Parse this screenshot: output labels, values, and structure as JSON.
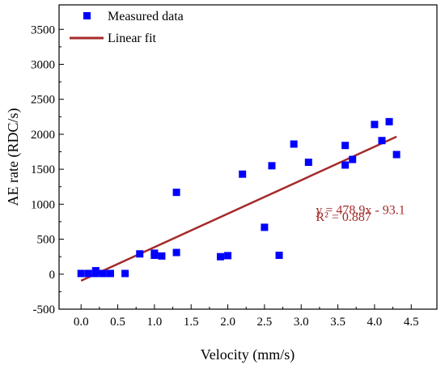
{
  "chart_data": {
    "type": "scatter",
    "title": "",
    "xlabel": "Velocity (mm/s)",
    "ylabel": "AE rate (RDC/s)",
    "xlim": [
      -0.3,
      4.85
    ],
    "ylim": [
      -500,
      3850
    ],
    "xticks": [
      0.0,
      0.5,
      1.0,
      1.5,
      2.0,
      2.5,
      3.0,
      3.5,
      4.0,
      4.5
    ],
    "xtick_labels": [
      "0.0",
      "0.5",
      "1.0",
      "1.5",
      "2.0",
      "2.5",
      "3.0",
      "3.5",
      "4.0",
      "4.5"
    ],
    "yticks": [
      -500,
      0,
      500,
      1000,
      1500,
      2000,
      2500,
      3000,
      3500
    ],
    "ytick_labels": [
      "-500",
      "0",
      "500",
      "1000",
      "1500",
      "2000",
      "2500",
      "3000",
      "3500"
    ],
    "grid": false,
    "legend_position": "top-left",
    "series": [
      {
        "name": "Measured data",
        "kind": "scatter",
        "color": "#0000ff",
        "x": [
          0.0,
          0.1,
          0.2,
          0.2,
          0.3,
          0.4,
          0.6,
          0.8,
          1.0,
          1.0,
          1.1,
          1.3,
          1.3,
          1.9,
          2.0,
          2.2,
          2.5,
          2.6,
          2.7,
          2.9,
          3.1,
          3.6,
          3.6,
          3.7,
          4.0,
          4.1,
          4.2,
          4.3
        ],
        "y": [
          10,
          10,
          50,
          10,
          10,
          10,
          10,
          290,
          300,
          270,
          260,
          1170,
          310,
          250,
          265,
          1430,
          670,
          1550,
          270,
          1860,
          1600,
          1840,
          1560,
          1640,
          2140,
          1910,
          2180,
          1710
        ]
      },
      {
        "name": "Linear fit",
        "kind": "line",
        "color": "#a52a2a",
        "slope": 478.9,
        "intercept": -93.1,
        "x_range": [
          0.0,
          4.3
        ]
      }
    ],
    "annotations": [
      {
        "text": "y = 478.9x - 93.1",
        "x": 3.2,
        "y": 860
      },
      {
        "text": "R² = 0.887",
        "x": 3.2,
        "y": 760
      }
    ]
  }
}
